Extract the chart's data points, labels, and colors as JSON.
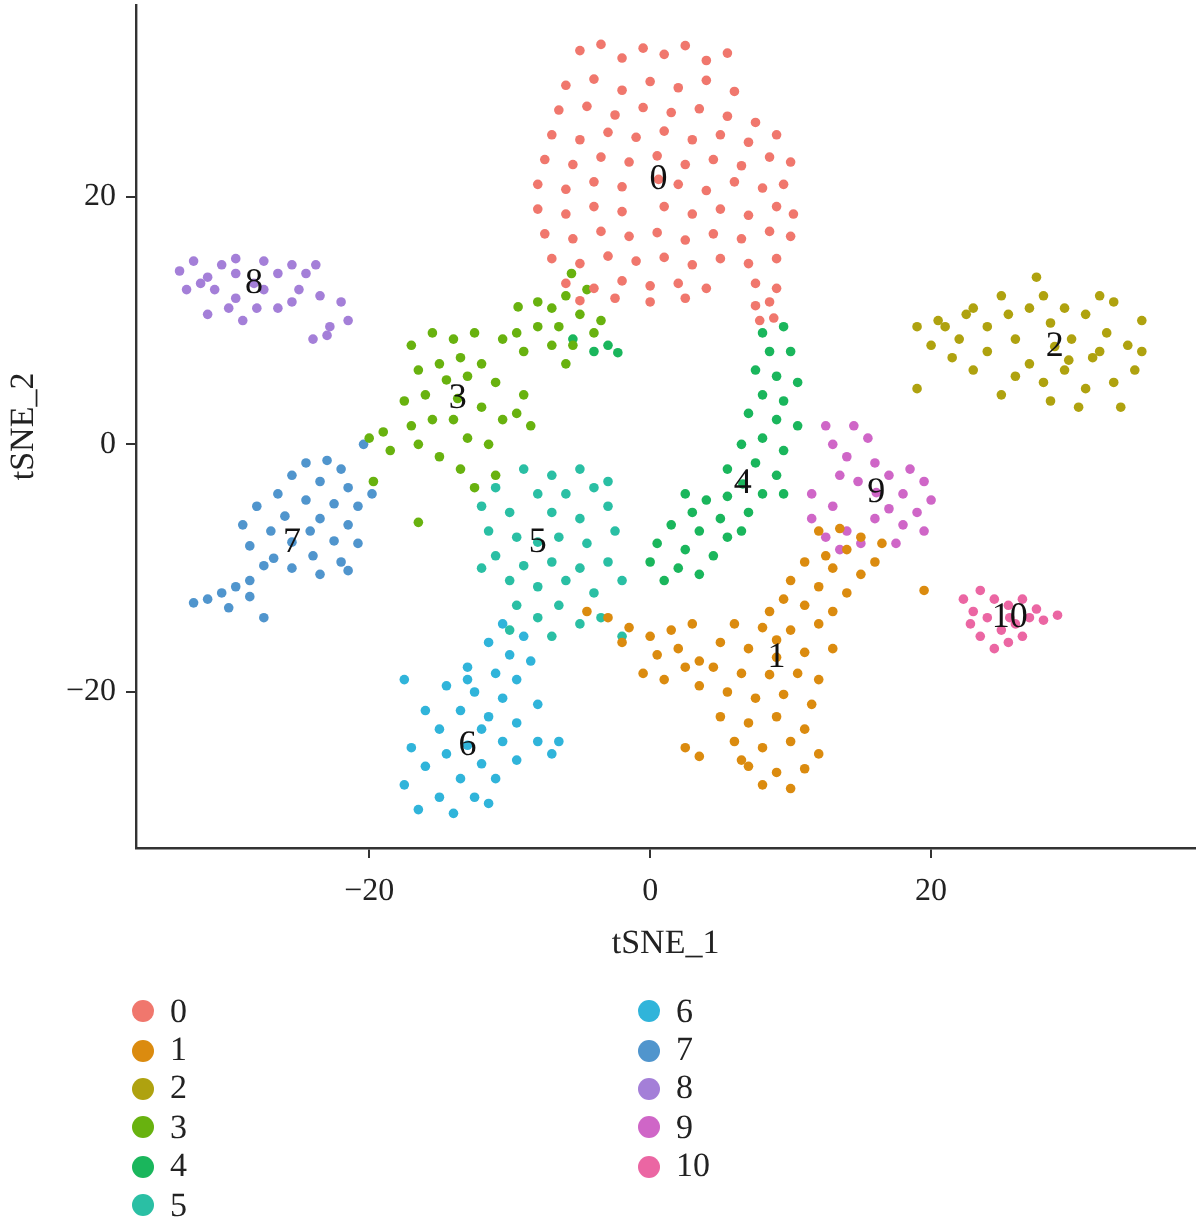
{
  "chart_data": {
    "type": "scatter",
    "xlabel": "tSNE_1",
    "ylabel": "tSNE_2",
    "xlim": [
      -36.6,
      38.8
    ],
    "ylim": [
      -32.6,
      35.5
    ],
    "xticks": [
      {
        "value": -20,
        "label": "−20"
      },
      0,
      20
    ],
    "yticks": [
      {
        "value": -20,
        "label": "−20"
      },
      0,
      20
    ],
    "legend": "bottom",
    "marker": "circle",
    "annotations": [
      {
        "text": "0",
        "x": 0.6,
        "y": 21.4
      },
      {
        "text": "1",
        "x": 9.0,
        "y": -17.2
      },
      {
        "text": "2",
        "x": 28.8,
        "y": 7.9
      },
      {
        "text": "3",
        "x": -13.7,
        "y": 3.7
      },
      {
        "text": "4",
        "x": 6.6,
        "y": -3.2
      },
      {
        "text": "5",
        "x": -8.0,
        "y": -7.9
      },
      {
        "text": "6",
        "x": -13.0,
        "y": -24.3
      },
      {
        "text": "7",
        "x": -25.5,
        "y": -7.9
      },
      {
        "text": "8",
        "x": -28.2,
        "y": 13.0
      },
      {
        "text": "9",
        "x": 16.1,
        "y": -3.9
      },
      {
        "text": "10",
        "x": 25.6,
        "y": -14.0
      }
    ],
    "series": [
      {
        "name": "0",
        "color": "#f0776d",
        "x": [
          -5,
          -3.5,
          -2,
          -0.5,
          1,
          2.5,
          4,
          5.5,
          -6,
          -4,
          -2,
          0,
          2,
          4,
          6,
          -6.5,
          -4.5,
          -2.5,
          -0.5,
          1.5,
          3.5,
          5.5,
          7.5,
          -7,
          -5,
          -3,
          -1,
          1,
          3,
          5,
          7,
          9,
          -7.5,
          -5.5,
          -3.5,
          -1.5,
          0.5,
          2.5,
          4.5,
          6.5,
          8.5,
          10,
          -8,
          -6,
          -4,
          -2,
          2,
          4,
          6,
          8,
          9.5,
          -8,
          -6,
          -4,
          -2,
          1,
          3,
          5,
          7,
          9,
          10.2,
          -7.5,
          -5.5,
          -3.5,
          -1.5,
          0.5,
          2.5,
          4.5,
          6.5,
          8.5,
          10,
          -7,
          -5,
          -3,
          -1,
          1,
          3,
          5,
          7,
          9,
          -6,
          -4,
          -2,
          0,
          2,
          4,
          7.5,
          9,
          -5,
          -2.5,
          0,
          2.5,
          7.5,
          8.5,
          7.8,
          8.8,
          0.6
        ],
        "values": [
          31.8,
          32.3,
          31.2,
          32,
          31.5,
          32.2,
          31,
          31.6,
          29,
          29.5,
          28.6,
          29.3,
          28.8,
          29.4,
          28.5,
          27,
          27.3,
          26.6,
          27.2,
          26.8,
          27.1,
          26.5,
          26,
          25,
          24.6,
          25.2,
          24.8,
          25.3,
          24.6,
          25,
          24.4,
          25,
          23,
          22.6,
          23.2,
          22.8,
          23.3,
          22.6,
          23,
          22.5,
          23.2,
          22.8,
          21,
          20.6,
          21.2,
          20.8,
          21,
          20.5,
          21.2,
          20.7,
          21,
          19,
          18.6,
          19.2,
          18.8,
          19.2,
          18.6,
          19,
          18.5,
          19.2,
          18.6,
          17,
          16.6,
          17.2,
          16.8,
          17.1,
          16.5,
          17,
          16.6,
          17.2,
          16.8,
          15,
          14.6,
          15.2,
          14.8,
          15.1,
          14.5,
          15,
          14.6,
          15,
          13,
          12.6,
          13.2,
          12.8,
          13,
          12.6,
          13,
          12.6,
          11.6,
          11.8,
          11.5,
          11.8,
          11.2,
          11.5,
          10,
          10.2,
          21.4
        ]
      },
      {
        "name": "1",
        "color": "#db8b0f",
        "x": [
          12,
          13.5,
          15,
          16.5,
          14,
          12.5,
          16,
          11,
          13,
          15,
          10,
          12,
          14,
          9.5,
          11,
          13,
          8.5,
          19.5,
          6,
          8,
          10,
          12,
          5,
          7,
          9,
          11,
          13,
          4.5,
          6.5,
          8.5,
          10.5,
          12,
          5.5,
          7.5,
          9.5,
          11.5,
          5,
          7,
          9,
          11,
          6,
          8,
          10,
          12,
          7,
          9,
          11,
          8,
          10,
          6.5,
          -4.5,
          -3,
          -1.5,
          0,
          1.5,
          3,
          -2,
          0.5,
          2,
          3.5,
          -0.5,
          1,
          2.5,
          3.5,
          2.5,
          3.5,
          9
        ],
        "values": [
          -7,
          -6.8,
          -7.5,
          -8,
          -8.5,
          -9,
          -9.5,
          -9.5,
          -10,
          -10.5,
          -11,
          -11.5,
          -12,
          -12.5,
          -13,
          -13.5,
          -13.5,
          -11.8,
          -14.5,
          -14.8,
          -15,
          -14.5,
          -16,
          -16.5,
          -15.8,
          -16.8,
          -16.5,
          -18,
          -18.5,
          -18.6,
          -18.5,
          -19,
          -20,
          -20.5,
          -20.2,
          -21,
          -22,
          -22.5,
          -22,
          -23,
          -24,
          -24.5,
          -24,
          -25,
          -26,
          -26.5,
          -26.2,
          -27.5,
          -27.8,
          -25.5,
          -13.5,
          -14,
          -14.8,
          -15.5,
          -15,
          -14.5,
          -16,
          -17,
          -16.5,
          -17.5,
          -18.5,
          -19,
          -18,
          -19.5,
          -24.5,
          -25.2,
          -17.2
        ]
      },
      {
        "name": "2",
        "color": "#afa20f",
        "x": [
          19,
          20,
          21,
          22,
          22.5,
          24,
          24,
          25.5,
          26,
          27,
          27.5,
          28,
          27,
          28.5,
          29.5,
          30,
          31,
          31.5,
          32.5,
          33,
          34,
          35,
          34.5,
          33,
          31,
          29.5,
          28,
          30.5,
          33.5,
          26,
          25,
          23,
          21.5,
          19,
          32,
          29.8,
          25,
          23,
          28.5,
          32,
          35,
          20.5,
          28.8
        ],
        "values": [
          9.5,
          8,
          9.5,
          8.5,
          10.5,
          9.5,
          7.5,
          10.5,
          8.5,
          11,
          13.5,
          12,
          6.5,
          9.8,
          11,
          8.5,
          10.5,
          7,
          9,
          11.5,
          8,
          10,
          6,
          5,
          4.5,
          6,
          5,
          3,
          3,
          5.5,
          4,
          6,
          7,
          4.5,
          7.5,
          6.8,
          12,
          11,
          3.5,
          12,
          7.5,
          10,
          7.9
        ]
      },
      {
        "name": "3",
        "color": "#68b20f",
        "x": [
          -5.6,
          -4.5,
          -6,
          -7,
          -8,
          -9.4,
          -5,
          -6.5,
          -8,
          -9.5,
          -10.5,
          -4,
          -5.5,
          -7,
          -9,
          -3.5,
          -6,
          -17,
          -15.5,
          -14,
          -12.5,
          -13.5,
          -15,
          -16.5,
          -12,
          -11,
          -13,
          -14.5,
          -16,
          -17.5,
          -12,
          -10.5,
          -14,
          -15.5,
          -17,
          -19,
          -20,
          -18.5,
          -16.5,
          -13,
          -11.5,
          -15,
          -13.5,
          -11,
          -12.5,
          -9.5,
          -8.5,
          -19.7,
          -16.5,
          -9,
          -13.7
        ],
        "values": [
          13.8,
          12.5,
          12,
          11,
          11.5,
          11.1,
          10.5,
          9.5,
          9.5,
          9,
          8.5,
          9,
          8,
          8,
          7.5,
          10,
          6.5,
          8,
          9,
          8.5,
          9,
          7,
          6.5,
          6,
          6.5,
          5,
          5.5,
          5.2,
          4,
          3.5,
          3,
          2,
          2,
          2,
          1.5,
          1,
          0.5,
          -0.5,
          0,
          0.5,
          0,
          -1,
          -2,
          -2.5,
          -3.5,
          2.5,
          1.5,
          -3,
          -6.3,
          4,
          3.7
        ]
      },
      {
        "name": "4",
        "color": "#1ab65c",
        "x": [
          8,
          9.5,
          8.5,
          10,
          7.5,
          9,
          10.5,
          8,
          9.5,
          7,
          9,
          10.5,
          8,
          6.5,
          9.5,
          7.5,
          5.5,
          9,
          5.5,
          8,
          4,
          9.5,
          3,
          5,
          7,
          1.5,
          3.5,
          5.5,
          0.5,
          2.5,
          4.5,
          0,
          2,
          3.5,
          1,
          6.5,
          2.5,
          -5.5,
          -4,
          -2.3,
          -3,
          6.6
        ],
        "values": [
          9,
          9.5,
          7.5,
          7.5,
          6,
          5.5,
          5,
          4,
          3.5,
          2.5,
          2,
          1.5,
          0.5,
          0,
          -0.5,
          -1.5,
          -2,
          -2.5,
          -4.2,
          -4,
          -4.5,
          -4,
          -5.5,
          -6,
          -5.5,
          -6.5,
          -7,
          -7.5,
          -8,
          -8.5,
          -9,
          -9.5,
          -10,
          -10.5,
          -11,
          -7,
          -4,
          8.5,
          7.5,
          7.4,
          8,
          -3.2
        ]
      },
      {
        "name": "5",
        "color": "#2abfa4",
        "x": [
          -9,
          -7,
          -5,
          -11,
          -8,
          -6,
          -4,
          -12,
          -10,
          -7,
          -5,
          -3,
          -11.5,
          -9.5,
          -6.5,
          -4.5,
          -2.5,
          -11,
          -9,
          -7,
          -5,
          -3,
          -10,
          -8,
          -6,
          -4,
          -2,
          -9.5,
          -8,
          -6.5,
          -5,
          -3.5,
          -2,
          -10,
          -7,
          -3,
          -12,
          -8
        ],
        "values": [
          -2,
          -2.5,
          -2,
          -3.5,
          -4,
          -4,
          -3.5,
          -5,
          -5.5,
          -5.5,
          -6,
          -5,
          -7,
          -7.5,
          -7.5,
          -8,
          -7,
          -9,
          -9.8,
          -9.5,
          -10,
          -9.5,
          -11,
          -11.5,
          -11,
          -12,
          -11,
          -13,
          -14,
          -13,
          -14.5,
          -14,
          -15.5,
          -15,
          -15.5,
          -3,
          -10,
          -7.9
        ]
      },
      {
        "name": "6",
        "color": "#30b4da",
        "x": [
          -10.5,
          -9,
          -11.5,
          -10,
          -8.5,
          -13,
          -11,
          -9.5,
          -14.5,
          -12.5,
          -10.5,
          -8,
          -17.5,
          -16,
          -13.5,
          -11.5,
          -9.5,
          -15,
          -12,
          -10.5,
          -8,
          -17,
          -14.5,
          -12,
          -9.5,
          -6.5,
          -16,
          -13.5,
          -11,
          -17.5,
          -15,
          -12.5,
          -16.5,
          -14,
          -11.5,
          -7,
          -13,
          -13
        ],
        "values": [
          -14.5,
          -15.5,
          -16,
          -17,
          -17.5,
          -18,
          -18.5,
          -19,
          -19.5,
          -20,
          -20.5,
          -21,
          -19,
          -21.5,
          -21.5,
          -22,
          -22.5,
          -23,
          -23,
          -24,
          -24,
          -24.5,
          -25,
          -25.8,
          -25.5,
          -24,
          -26,
          -27,
          -27,
          -27.5,
          -28.5,
          -28.5,
          -29.5,
          -29.8,
          -29,
          -25,
          -19,
          -24.3
        ]
      },
      {
        "name": "7",
        "color": "#5095cd",
        "x": [
          -24.5,
          -23,
          -22,
          -25.5,
          -23.5,
          -21.5,
          -26.5,
          -24.5,
          -22.5,
          -20.8,
          -28,
          -26,
          -23.5,
          -21.5,
          -29,
          -27,
          -24.2,
          -22.5,
          -20.8,
          -28.5,
          -26.8,
          -24,
          -22,
          -27.5,
          -25.5,
          -23.5,
          -21.5,
          -28.5,
          -29.5,
          -30.5,
          -31.5,
          -32.5,
          -30,
          -28.5,
          -27.5,
          -20.4,
          -19.8,
          -25.5
        ],
        "values": [
          -1.5,
          -1.3,
          -2,
          -2.5,
          -3,
          -3.5,
          -4,
          -4.5,
          -4.8,
          -5,
          -5,
          -5.8,
          -6,
          -6.5,
          -6.5,
          -7,
          -7,
          -7.8,
          -8,
          -8.2,
          -9.2,
          -9,
          -9.5,
          -9.8,
          -10,
          -10.5,
          -10.2,
          -11,
          -11.5,
          -12,
          -12.5,
          -12.8,
          -13.2,
          -12.3,
          -14,
          0,
          -4,
          -7.9
        ]
      },
      {
        "name": "8",
        "color": "#a47fd8",
        "x": [
          -33.5,
          -32.5,
          -31.5,
          -30.5,
          -29.5,
          -29.5,
          -27.5,
          -26.5,
          -25.5,
          -24.5,
          -23.8,
          -33,
          -31,
          -29.5,
          -27.5,
          -30,
          -29,
          -28,
          -25.5,
          -26.5,
          -23.5,
          -22,
          -21.5,
          -22.8,
          -24,
          -23,
          -31.5,
          -25,
          -32,
          -28.2
        ],
        "values": [
          14,
          14.8,
          13.5,
          14.5,
          15,
          13.8,
          14.8,
          13.8,
          14.5,
          13.8,
          14.5,
          12.5,
          12.5,
          11.8,
          12.5,
          11,
          10,
          11,
          11.5,
          11,
          12,
          11.5,
          10,
          9.5,
          8.5,
          8.8,
          10.5,
          12.5,
          13,
          13
        ]
      },
      {
        "name": "9",
        "color": "#cf66c7",
        "x": [
          12.5,
          14.5,
          13,
          15.5,
          14,
          16,
          13.5,
          14.8,
          17,
          18.5,
          19.5,
          18,
          20,
          17,
          19,
          18,
          19.5,
          16,
          14,
          12.5,
          13.5,
          15,
          11.5,
          17.5,
          13,
          11.5,
          16.1
        ],
        "values": [
          1.5,
          1.5,
          0,
          0.5,
          -1,
          -1.5,
          -2.5,
          -3,
          -2.5,
          -2,
          -3,
          -4,
          -4.5,
          -5.2,
          -5.5,
          -6.5,
          -7,
          -6,
          -7,
          -7.5,
          -8.5,
          -8,
          -6,
          -8,
          -5,
          -4,
          -3.9
        ]
      },
      {
        "name": "10",
        "color": "#eb66a3",
        "x": [
          22.3,
          23.5,
          24.5,
          23,
          24,
          25.5,
          26.5,
          25,
          26,
          27,
          28,
          29,
          23.5,
          25.5,
          24.5,
          27.5,
          22.8,
          26.5,
          25.6
        ],
        "values": [
          -12.5,
          -11.8,
          -12.5,
          -13.5,
          -14,
          -13,
          -12.5,
          -15,
          -14.5,
          -14,
          -14.2,
          -13.8,
          -15.5,
          -16,
          -16.5,
          -13.3,
          -14.5,
          -15.5,
          -14
        ]
      }
    ]
  }
}
